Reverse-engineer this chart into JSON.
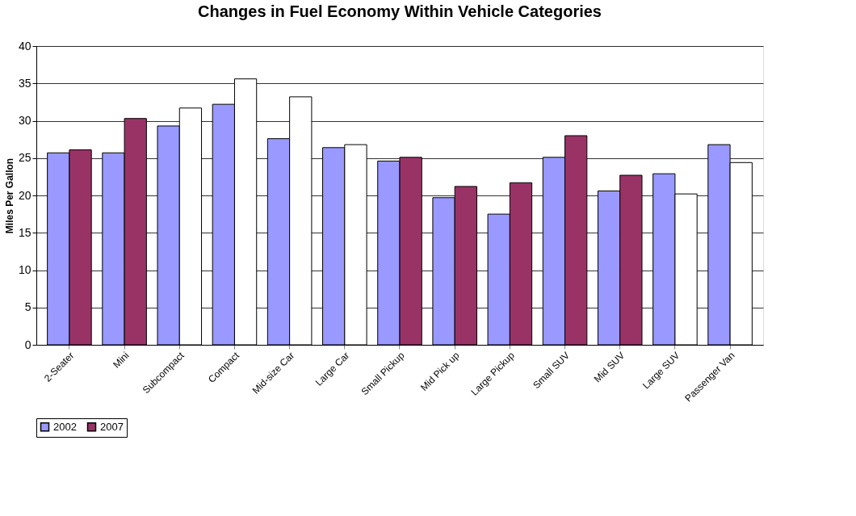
{
  "chart_data": {
    "type": "bar",
    "title": "Changes in Fuel Economy Within Vehicle Categories",
    "ylabel": "Miles Per Gallon",
    "categories": [
      "2-Seater",
      "Mini",
      "Subcompact",
      "Compact",
      "Mid-size Car",
      "Large Car",
      "Small Pickup",
      "Mid Pick up",
      "Large Pickup",
      "Small SUV",
      "Mid SUV",
      "Large SUV",
      "Passenger Van"
    ],
    "series": [
      {
        "name": "2002",
        "color": "#9999ff",
        "values": [
          25.7,
          25.7,
          29.3,
          32.2,
          27.6,
          26.4,
          24.6,
          19.7,
          17.5,
          25.1,
          20.6,
          22.9,
          26.8
        ]
      },
      {
        "name": "2007",
        "color": "#993366",
        "colors": [
          "#993366",
          "#993366",
          "#ffffff",
          "#ffffff",
          "#ffffff",
          "#ffffff",
          "#993366",
          "#993366",
          "#993366",
          "#993366",
          "#993366",
          "#ffffff",
          "#ffffff"
        ],
        "values": [
          26.1,
          30.3,
          31.7,
          35.6,
          33.2,
          26.8,
          25.1,
          21.2,
          21.7,
          28.0,
          22.7,
          20.2,
          24.4
        ]
      }
    ],
    "ylim": [
      0,
      40
    ],
    "yticks": [
      0,
      5,
      10,
      15,
      20,
      25,
      30,
      35,
      40
    ],
    "grid": "y",
    "legend": "bottom"
  }
}
